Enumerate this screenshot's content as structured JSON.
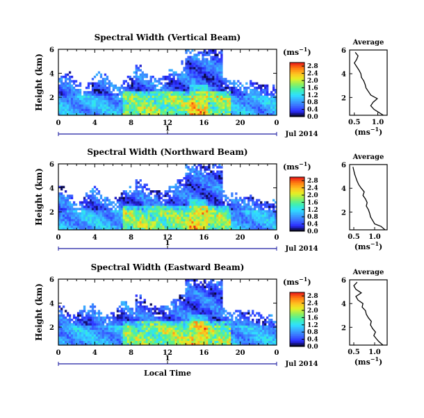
{
  "figure": {
    "date_label": "Jul 2014",
    "xaxis_title": "Local Time",
    "colorbar_units_base": "(ms",
    "colorbar_units_exp": "−1",
    "colorbar_units_close": ")",
    "avg_units_base": "(ms",
    "avg_units_exp": "−1",
    "avg_units_close": ")",
    "avg_title": "Average",
    "height_label": "Height (km)"
  },
  "colors": {
    "colormap": [
      "#000000",
      "#2a2aff",
      "#3b6cff",
      "#39a8ff",
      "#2fe0ff",
      "#3ff0b0",
      "#8cf060",
      "#e6f025",
      "#ffc020",
      "#ff7a10",
      "#e81818"
    ]
  },
  "chart_data": [
    {
      "type": "heatmap",
      "title": "Spectral Width (Vertical Beam)",
      "x_ticks": [
        "0",
        "4",
        "8",
        "12",
        "16",
        "20",
        "0"
      ],
      "x_range_hours": [
        0,
        24
      ],
      "y_ticks": [
        "2",
        "4",
        "6"
      ],
      "y_range_km": [
        0.5,
        6
      ],
      "date_tick": "1",
      "colorbar_ticks": [
        "0.0",
        "0.4",
        "0.8",
        "1.2",
        "1.6",
        "2.0",
        "2.4",
        "2.8"
      ],
      "colorbar_range": [
        0,
        3
      ],
      "average_profile": {
        "x_ticks": [
          "0.5",
          "1.0"
        ],
        "x_range": [
          0.4,
          1.2
        ],
        "y_ticks": [
          "2",
          "4",
          "6"
        ],
        "y_range": [
          0.5,
          6
        ],
        "height_km": [
          0.5,
          0.8,
          1.0,
          1.3,
          1.6,
          1.9,
          2.2,
          2.5,
          2.8,
          3.1,
          3.4,
          3.7,
          4.0,
          4.3,
          4.6,
          4.9,
          5.2,
          5.5,
          5.8
        ],
        "width_ms": [
          1.12,
          1.0,
          0.92,
          0.85,
          0.9,
          0.99,
          0.85,
          0.8,
          0.75,
          0.73,
          0.7,
          0.65,
          0.64,
          0.6,
          0.55,
          0.5,
          0.55,
          0.58,
          0.52
        ]
      }
    },
    {
      "type": "heatmap",
      "title": "Spectral Width (Northward Beam)",
      "x_ticks": [
        "0",
        "4",
        "8",
        "12",
        "16",
        "20",
        "0"
      ],
      "x_range_hours": [
        0,
        24
      ],
      "y_ticks": [
        "2",
        "4",
        "6"
      ],
      "y_range_km": [
        0.5,
        6
      ],
      "date_tick": "1",
      "colorbar_ticks": [
        "0.0",
        "0.4",
        "0.8",
        "1.2",
        "1.6",
        "2.0",
        "2.4",
        "2.8"
      ],
      "colorbar_range": [
        0,
        3
      ],
      "average_profile": {
        "x_ticks": [
          "0.5",
          "1.0"
        ],
        "x_range": [
          0.4,
          1.3
        ],
        "y_ticks": [
          "2",
          "4",
          "6"
        ],
        "y_range": [
          0.5,
          6
        ],
        "height_km": [
          0.5,
          0.8,
          1.0,
          1.3,
          1.6,
          1.9,
          2.2,
          2.5,
          2.8,
          3.1,
          3.4,
          3.7,
          4.0,
          4.3,
          4.6,
          4.9,
          5.2,
          5.5,
          5.8
        ],
        "width_ms": [
          1.25,
          1.15,
          1.0,
          0.95,
          0.9,
          0.88,
          0.85,
          0.8,
          0.82,
          0.78,
          0.72,
          0.75,
          0.68,
          0.62,
          0.58,
          0.55,
          0.52,
          0.5,
          0.48
        ]
      }
    },
    {
      "type": "heatmap",
      "title": "Spectral Width (Eastward Beam)",
      "x_ticks": [
        "0",
        "4",
        "8",
        "12",
        "16",
        "20",
        "0"
      ],
      "x_range_hours": [
        0,
        24
      ],
      "y_ticks": [
        "2",
        "4",
        "6"
      ],
      "y_range_km": [
        0.5,
        6
      ],
      "date_tick": "1",
      "colorbar_ticks": [
        "0.0",
        "0.4",
        "0.8",
        "1.2",
        "1.6",
        "2.0",
        "2.4",
        "2.8"
      ],
      "colorbar_range": [
        0,
        3
      ],
      "average_profile": {
        "x_ticks": [
          "0.5",
          "1.0"
        ],
        "x_range": [
          0.4,
          1.3
        ],
        "y_ticks": [
          "2",
          "4",
          "6"
        ],
        "y_range": [
          0.5,
          6
        ],
        "height_km": [
          0.5,
          0.8,
          1.0,
          1.3,
          1.6,
          1.9,
          2.2,
          2.5,
          2.8,
          3.1,
          3.4,
          3.7,
          4.0,
          4.3,
          4.6,
          4.9,
          5.2,
          5.5,
          5.8
        ],
        "width_ms": [
          1.2,
          1.1,
          1.05,
          0.98,
          1.02,
          0.95,
          0.9,
          0.92,
          0.85,
          0.8,
          0.78,
          0.7,
          0.72,
          0.6,
          0.55,
          0.68,
          0.55,
          0.5,
          0.58
        ]
      }
    }
  ]
}
